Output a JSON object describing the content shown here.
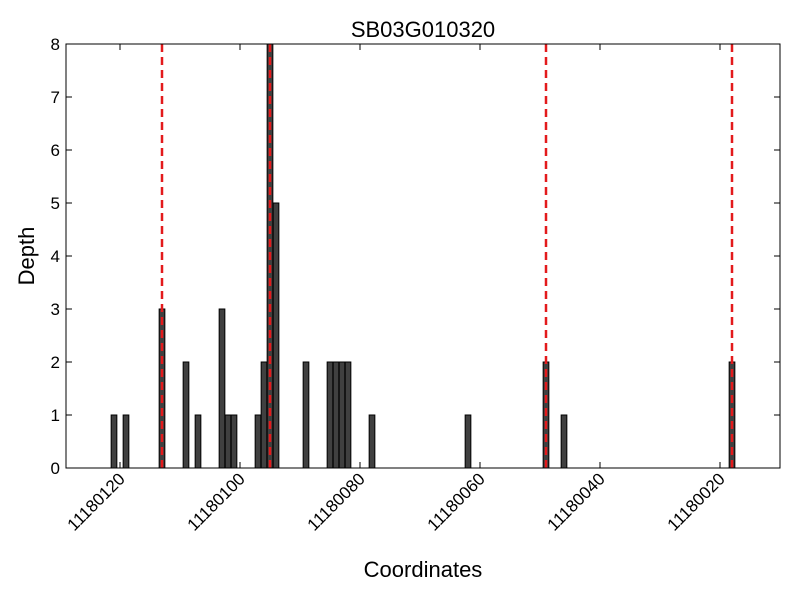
{
  "chart_data": {
    "type": "bar",
    "title": "SB03G010320",
    "xlabel": "Coordinates",
    "ylabel": "Depth",
    "x_reversed": true,
    "xlim": [
      11180129,
      11180010
    ],
    "ylim": [
      0,
      8
    ],
    "x_ticks": [
      11180120,
      11180100,
      11180080,
      11180060,
      11180040,
      11180020
    ],
    "y_ticks": [
      0,
      1,
      2,
      3,
      4,
      5,
      6,
      7,
      8
    ],
    "bar_color": "#404040",
    "marker_color": "#e31a1c",
    "bars": [
      {
        "x": 11180121,
        "y": 1
      },
      {
        "x": 11180119,
        "y": 1
      },
      {
        "x": 11180113,
        "y": 3
      },
      {
        "x": 11180109,
        "y": 2
      },
      {
        "x": 11180107,
        "y": 1
      },
      {
        "x": 11180103,
        "y": 3
      },
      {
        "x": 11180102,
        "y": 1
      },
      {
        "x": 11180101,
        "y": 1
      },
      {
        "x": 11180097,
        "y": 1
      },
      {
        "x": 11180096,
        "y": 2
      },
      {
        "x": 11180095,
        "y": 8
      },
      {
        "x": 11180094,
        "y": 5
      },
      {
        "x": 11180089,
        "y": 2
      },
      {
        "x": 11180085,
        "y": 2
      },
      {
        "x": 11180084,
        "y": 2
      },
      {
        "x": 11180083,
        "y": 2
      },
      {
        "x": 11180082,
        "y": 2
      },
      {
        "x": 11180078,
        "y": 1
      },
      {
        "x": 11180062,
        "y": 1
      },
      {
        "x": 11180049,
        "y": 2
      },
      {
        "x": 11180046,
        "y": 1
      },
      {
        "x": 11180018,
        "y": 2
      }
    ],
    "markers": [
      11180113,
      11180095,
      11180049,
      11180018
    ]
  }
}
